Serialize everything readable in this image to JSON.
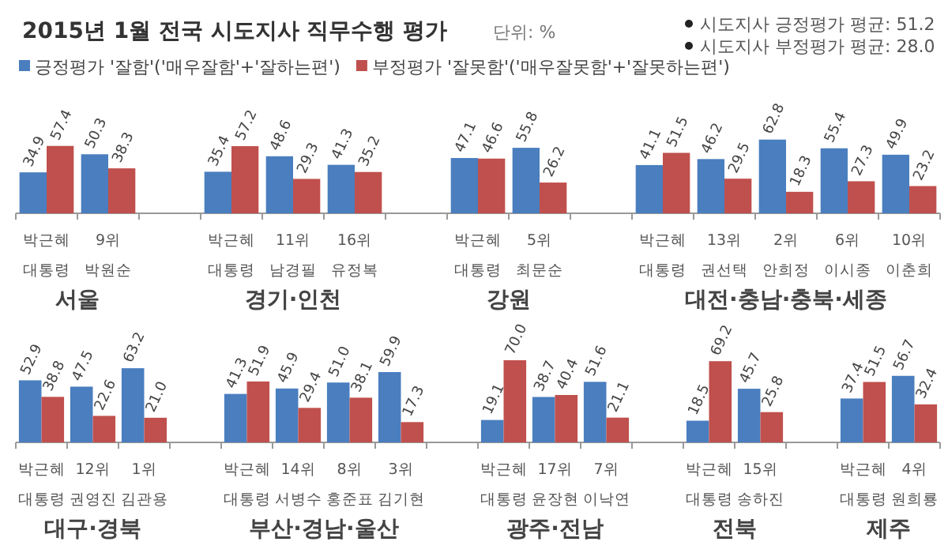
{
  "chart_data": [
    {
      "type": "bar",
      "title": "2015년 1월 전국 시도지사 직무수행 평가",
      "xlabel": "서울",
      "legend": "top",
      "annotations": [
        "단위: %",
        "시도지사 긍정평가 평균: 51.2",
        "시도지사 부정평가 평균: 28.0"
      ],
      "categories": [
        "박근혜 대통령",
        "9위 박원순"
      ],
      "series": [
        {
          "name": "긍정평가 '잘함'('매우잘함'+'잘하는편')",
          "color": "#4a7ebf",
          "values": [
            34.9,
            50.3
          ],
          "value_labels": [
            "34.9",
            "50.3"
          ]
        },
        {
          "name": "부정평가 '잘못함'('매우잘못함'+'잘못하는편')",
          "color": "#c0504d",
          "values": [
            57.4,
            38.3
          ],
          "value_labels": [
            "57.4",
            "38.3"
          ]
        }
      ]
    },
    {
      "type": "bar",
      "xlabel": "경기·인천",
      "categories": [
        "박근혜 대통령",
        "11위 남경필",
        "16위 유정복"
      ],
      "series": [
        {
          "color": "#4a7ebf",
          "values": [
            35.4,
            48.6,
            41.3
          ],
          "value_labels": [
            "35.4",
            "48.6",
            "41.3"
          ]
        },
        {
          "color": "#c0504d",
          "values": [
            57.2,
            29.3,
            35.2
          ],
          "value_labels": [
            "57.2",
            "29.3",
            "35.2"
          ]
        }
      ]
    },
    {
      "type": "bar",
      "xlabel": "강원",
      "categories": [
        "박근혜 대통령",
        "5위 최문순"
      ],
      "series": [
        {
          "color": "#4a7ebf",
          "values": [
            47.1,
            55.8
          ],
          "value_labels": [
            "47.1",
            "55.8"
          ]
        },
        {
          "color": "#c0504d",
          "values": [
            46.6,
            26.2
          ],
          "value_labels": [
            "46.6",
            "26.2"
          ]
        }
      ]
    },
    {
      "type": "bar",
      "xlabel": "대전·충남·충북·세종",
      "categories": [
        "박근혜 대통령",
        "13위 권선택",
        "2위 안희정",
        "6위 이시종",
        "10위 이춘희"
      ],
      "series": [
        {
          "color": "#4a7ebf",
          "values": [
            41.1,
            46.2,
            62.8,
            55.4,
            49.9
          ],
          "value_labels": [
            "41.1",
            "46.2",
            "62.8",
            "55.4",
            "49.9"
          ]
        },
        {
          "color": "#c0504d",
          "values": [
            51.5,
            29.5,
            18.3,
            27.3,
            23.2
          ],
          "value_labels": [
            "51.5",
            "29.5",
            "18.3",
            "27.3",
            "23.2"
          ]
        }
      ]
    },
    {
      "type": "bar",
      "xlabel": "대구·경북",
      "categories": [
        "박근혜 대통령",
        "12위 권영진",
        "1위 김관용"
      ],
      "series": [
        {
          "color": "#4a7ebf",
          "values": [
            52.9,
            47.5,
            63.2
          ],
          "value_labels": [
            "52.9",
            "47.5",
            "63.2"
          ]
        },
        {
          "color": "#c0504d",
          "values": [
            38.8,
            22.6,
            21.0
          ],
          "value_labels": [
            "38.8",
            "22.6",
            "21.0"
          ]
        }
      ]
    },
    {
      "type": "bar",
      "xlabel": "부산·경남·울산",
      "categories": [
        "박근혜 대통령",
        "14위 서병수",
        "8위 홍준표",
        "3위 김기현"
      ],
      "series": [
        {
          "color": "#4a7ebf",
          "values": [
            41.3,
            45.9,
            51.0,
            59.9
          ],
          "value_labels": [
            "41.3",
            "45.9",
            "51.0",
            "59.9"
          ]
        },
        {
          "color": "#c0504d",
          "values": [
            51.9,
            29.4,
            38.1,
            17.3
          ],
          "value_labels": [
            "51.9",
            "29.4",
            "38.1",
            "17.3"
          ]
        }
      ]
    },
    {
      "type": "bar",
      "xlabel": "광주·전남",
      "categories": [
        "박근혜 대통령",
        "17위 윤장현",
        "7위 이낙연"
      ],
      "series": [
        {
          "color": "#4a7ebf",
          "values": [
            19.1,
            38.7,
            51.6
          ],
          "value_labels": [
            "19.1",
            "38.7",
            "51.6"
          ]
        },
        {
          "color": "#c0504d",
          "values": [
            70.0,
            40.4,
            21.1
          ],
          "value_labels": [
            "70.0",
            "40.4",
            "21.1"
          ]
        }
      ]
    },
    {
      "type": "bar",
      "xlabel": "전북",
      "categories": [
        "박근혜 대통령",
        "15위 송하진"
      ],
      "series": [
        {
          "color": "#4a7ebf",
          "values": [
            18.5,
            45.7
          ],
          "value_labels": [
            "18.5",
            "45.7"
          ]
        },
        {
          "color": "#c0504d",
          "values": [
            69.2,
            25.8
          ],
          "value_labels": [
            "69.2",
            "25.8"
          ]
        }
      ]
    },
    {
      "type": "bar",
      "xlabel": "제주",
      "categories": [
        "박근혜 대통령",
        "4위 원희룡"
      ],
      "series": [
        {
          "color": "#4a7ebf",
          "values": [
            37.4,
            56.7
          ],
          "value_labels": [
            "37.4",
            "56.7"
          ]
        },
        {
          "color": "#c0504d",
          "values": [
            51.5,
            32.4
          ],
          "value_labels": [
            "51.5",
            "32.4"
          ]
        }
      ]
    }
  ]
}
